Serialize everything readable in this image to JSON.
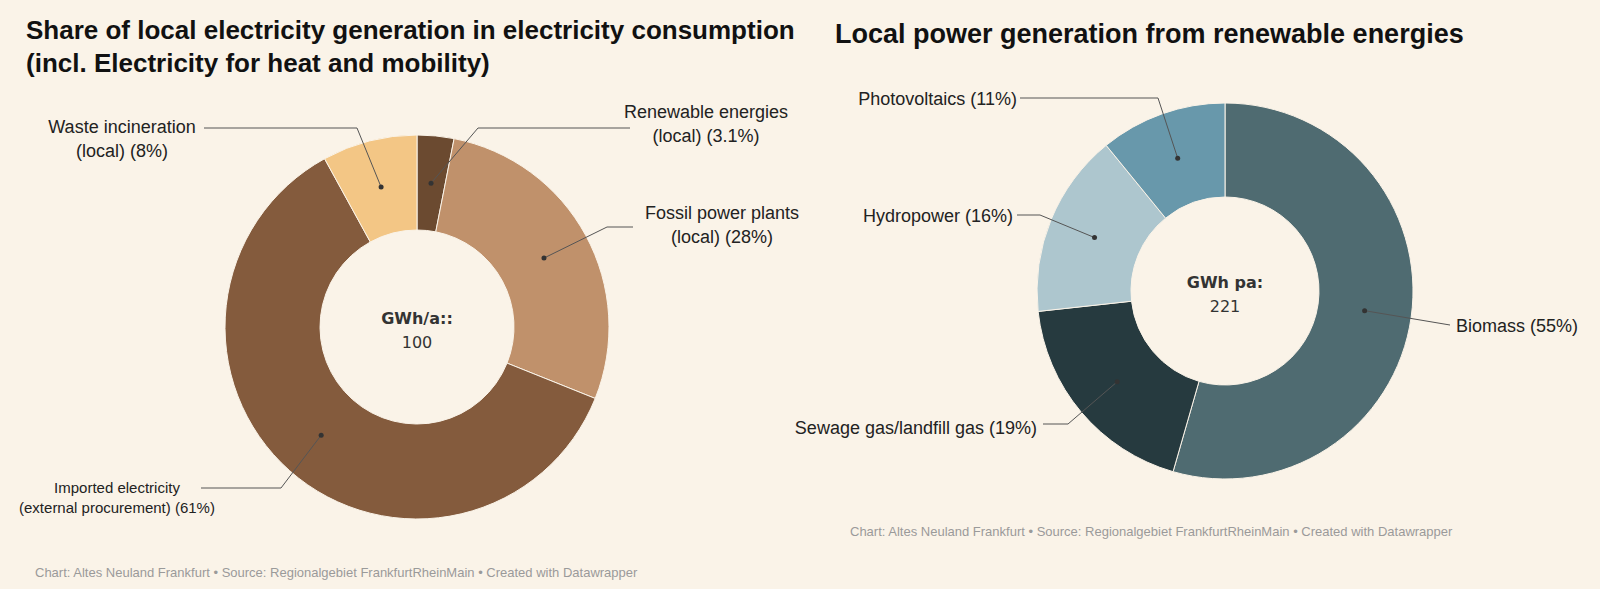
{
  "chart_data": [
    {
      "type": "pie",
      "title": "Share of local electricity generation in electricity consumption (incl. Electricity for heat and mobility)",
      "categories": [
        "Renewable energies (local)",
        "Fossil power plants (local)",
        "Imported electricity (external procurement)",
        "Waste incineration (local)"
      ],
      "values": [
        3.1,
        28,
        61,
        8
      ],
      "value_labels": [
        "(3.1%)",
        "(28%)",
        "(61%)",
        "(8%)"
      ],
      "colors": [
        "#6b4a30",
        "#c0916b",
        "#845b3d",
        "#f3c685"
      ],
      "data_labels": true,
      "center_label": "GWh/a::",
      "total": 100,
      "source": "Chart: Altes Neuland Frankfurt • Source: Regionalgebiet FrankfurtRheinMain • Created with Datawrapper"
    },
    {
      "type": "pie",
      "title": "Local power generation from renewable energies",
      "categories": [
        "Biomass",
        "Sewage gas/landfill gas",
        "Hydropower",
        "Photovoltaics"
      ],
      "values": [
        55,
        19,
        16,
        11
      ],
      "value_labels": [
        "(55%)",
        "(19%)",
        "(16%)",
        "(11%)"
      ],
      "colors": [
        "#4f6b71",
        "#263a3f",
        "#adc6ce",
        "#6898ab"
      ],
      "data_labels": true,
      "center_label": "GWh pa:",
      "total": 221,
      "source": "Chart: Altes Neuland Frankfurt • Source: Regionalgebiet FrankfurtRheinMain • Created with Datawrapper"
    }
  ]
}
